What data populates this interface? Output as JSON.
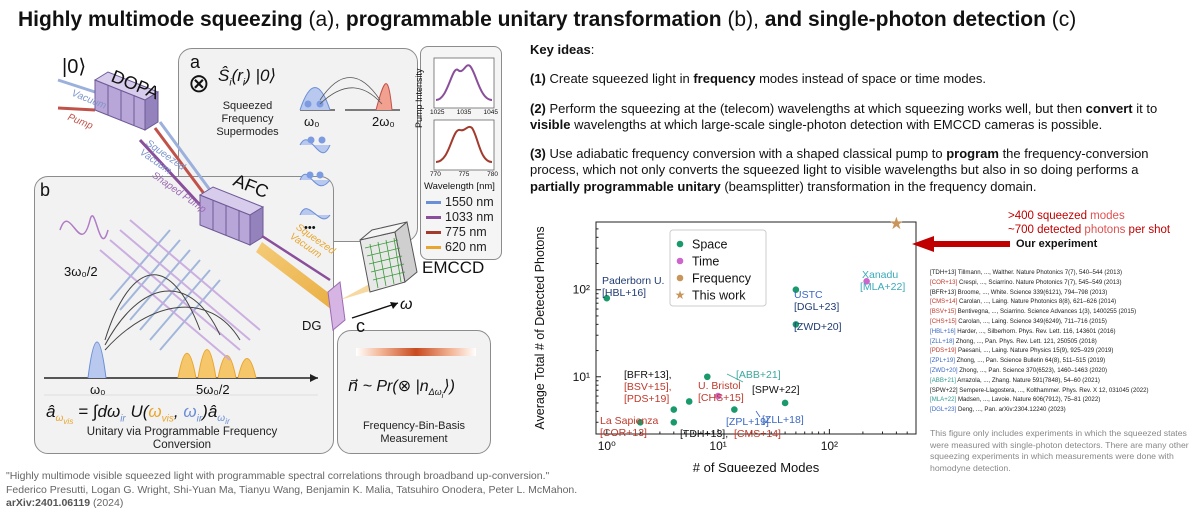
{
  "title": {
    "part1": "Highly multimode squeezing",
    "part1_tag": " (a), ",
    "part2": "programmable unitary transformation",
    "part2_tag": " (b), ",
    "part3": "and single-photon detection",
    "part3_tag": " (c)"
  },
  "figure": {
    "label_a": "a",
    "label_b": "b",
    "label_c": "c",
    "ket0": "|0⟩",
    "vacuum": "Vacuum",
    "pump": "Pump",
    "dopa": "DOPA",
    "squeezed_vacuum": "Squeezed Vacuum",
    "shaped_pump": "Shaped Pump",
    "afc": "AFC",
    "squeezed_vacuum_2": "Squeezed Vacuum",
    "emccd": "EMCCD",
    "dg": "DG",
    "omega": "ω",
    "omega0": "ω₀",
    "two_omega0": "2ω₀",
    "three_omega0_half": "3ω₀/2",
    "five_omega0_half": "5ω₀/2",
    "dots": "•••",
    "panel_a_caption": "Squeezed Frequency Supermodes",
    "panel_b_caption": "Unitary via Programmable Frequency Conversion",
    "panel_c_caption": "Frequency-Bin-Basis Measurement",
    "pump_intensity": "Pump Intensity",
    "wavelength_nm": "Wavelength [nm]",
    "inset_ticks_top": [
      "1025",
      "1035",
      "1045"
    ],
    "inset_ticks_bottom": [
      "770",
      "775",
      "780"
    ],
    "legend": [
      {
        "label": "1550 nm",
        "color": "#6b8fd6"
      },
      {
        "label": "1033 nm",
        "color": "#8a4f9a"
      },
      {
        "label": "775 nm",
        "color": "#a33a2e"
      },
      {
        "label": "620 nm",
        "color": "#e8a62e"
      }
    ]
  },
  "key_ideas": {
    "heading": "Key ideas",
    "i1_num": "(1)",
    "i1_a": " Create squeezed light in ",
    "i1_b": "frequency",
    "i1_c": " modes instead of space or time modes.",
    "i2_num": "(2)",
    "i2_a": " Perform the squeezing at the (telecom) wavelengths at which squeezing works well, but then ",
    "i2_b": "convert",
    "i2_c": " it to ",
    "i2_d": "visible",
    "i2_e": " wavelengths at which large-scale single-photon detection with EMCCD cameras is possible.",
    "i3_num": "(3)",
    "i3_a": " Use adiabatic frequency conversion with a shaped classical pump to ",
    "i3_b": "program",
    "i3_c": " the frequency-conversion process, which not only converts the squeezed light to visible wavelengths but also in so doing performs a ",
    "i3_d": "partially programmable unitary",
    "i3_e": " (beamsplitter) transformation in the frequency domain."
  },
  "chart_data": {
    "type": "scatter",
    "xlabel": "# of Squeezed Modes",
    "ylabel": "Average Total # of Detected Photons",
    "x_scale": "log",
    "y_scale": "log",
    "xlim": [
      0.8,
      600
    ],
    "ylim": [
      2.2,
      600
    ],
    "x_ticks": [
      {
        "v": 1,
        "label": "10⁰"
      },
      {
        "v": 10,
        "label": "10¹"
      },
      {
        "v": 100,
        "label": "10²"
      }
    ],
    "y_ticks": [
      {
        "v": 10,
        "label": "10¹"
      },
      {
        "v": 100,
        "label": "10²"
      }
    ],
    "legend": [
      {
        "label": "Space",
        "color": "#1a9a6c",
        "marker": "dot"
      },
      {
        "label": "Time",
        "color": "#cc66cc",
        "marker": "dot"
      },
      {
        "label": "Frequency",
        "color": "#c8955a",
        "marker": "dot"
      },
      {
        "label": "This work",
        "color": "#c8955a",
        "marker": "star"
      }
    ],
    "legend_position": "top-left",
    "series": [
      {
        "name": "Space",
        "color": "#1a9a6c",
        "points": [
          {
            "x": 1,
            "y": 80
          },
          {
            "x": 2,
            "y": 3
          },
          {
            "x": 4,
            "y": 3
          },
          {
            "x": 4,
            "y": 4.2
          },
          {
            "x": 5.5,
            "y": 5.2
          },
          {
            "x": 8,
            "y": 10
          },
          {
            "x": 14,
            "y": 4.2
          },
          {
            "x": 40,
            "y": 5
          },
          {
            "x": 50,
            "y": 100
          },
          {
            "x": 50,
            "y": 40
          }
        ]
      },
      {
        "name": "Time",
        "color": "#cc66cc",
        "points": [
          {
            "x": 10,
            "y": 6
          },
          {
            "x": 216,
            "y": 125
          }
        ]
      },
      {
        "name": "This work",
        "color": "#c8955a",
        "marker": "star",
        "points": [
          {
            "x": 400,
            "y": 700
          }
        ]
      }
    ],
    "annotations": [
      {
        "text": "Paderborn U.",
        "color": "#1f3b73"
      },
      {
        "text": "[HBL+16]",
        "color": "#1f3b73"
      },
      {
        "text": "USTC",
        "color": "#3b68c4"
      },
      {
        "text": "[DGL+23]",
        "color": "#1f3b73"
      },
      {
        "text": "Xanadu",
        "color": "#3aaabb"
      },
      {
        "text": "[MLA+22]",
        "color": "#3aaabb"
      },
      {
        "text": "[ZWD+20]",
        "color": "#1f3b73"
      },
      {
        "text": "[BFR+13],",
        "color": "#111"
      },
      {
        "text": "[BSV+15],",
        "color": "#c0392b"
      },
      {
        "text": "[PDS+19]",
        "color": "#c0392b"
      },
      {
        "text": "U. Bristol",
        "color": "#c0392b"
      },
      {
        "text": "[CHS+15]",
        "color": "#c0392b"
      },
      {
        "text": "[ABB+21]",
        "color": "#3aaa9b"
      },
      {
        "text": "[SPW+22]",
        "color": "#111"
      },
      {
        "text": "[ZPL+19]",
        "color": "#3b68c4"
      },
      {
        "text": "[ZLL+18]",
        "color": "#3b68c4"
      },
      {
        "text": "La Sapienza",
        "color": "#c0392b"
      },
      {
        "text": "[COR+13]",
        "color": "#c0392b"
      },
      {
        "text": "[TDH+13],",
        "color": "#111"
      },
      {
        "text": "[CMS+14]",
        "color": "#c0392b"
      }
    ],
    "callout": {
      "line1_a": ">400 squeezed ",
      "line1_b": "modes",
      "line2_a": "~700 detected ",
      "line2_b": "photons",
      "line2_c": " per shot",
      "our": "Our experiment"
    }
  },
  "references": [
    "[TDH+13] Tillmann, ..., Walther. Nature Photonics 7(7), 540–544 (2013)",
    "[COR+13] Crespi, ..., Sciarrino. Nature Photonics 7(7), 545–549 (2013)",
    "[BFR+13] Broome, ..., White. Science 339(6121), 794–798 (2013)",
    "[CMS+14] Carolan, ..., Laing. Nature Photonics 8(8), 621–626 (2014)",
    "[BSV+15] Bentivegna, ..., Sciarrino. Science Advances 1(3), 1400255 (2015)",
    "[CHS+15] Carolan, ..., Laing. Science 349(6249), 711–716 (2015)",
    "[HBL+16] Harder, ..., Silberhorn. Phys. Rev. Lett. 116, 143601 (2016)",
    "[ZLL+18] Zhong, ..., Pan. Phys. Rev. Lett. 121, 250505 (2018)",
    "[PDS+19] Paesani, ..., Laing. Nature Physics 15(9), 925–929 (2019)",
    "[ZPL+19] Zhong, ..., Pan. Science Bulletin 64(8), 511–515 (2019)",
    "[ZWD+20] Zhong, ..., Pan. Science 370(6523), 1460–1463 (2020)",
    "[ABB+21] Arrazola, ..., Zhang. Nature 591(7848), 54–60 (2021)",
    "[SPW+22] Sempere-Llagostera, ..., Kolthammer. Phys. Rev. X 12, 031045 (2022)",
    "[MLA+22] Madsen, ..., Lavoie. Nature 606(7912), 75–81 (2022)",
    "[DGL+23] Deng, ..., Pan. arXiv:2304.12240 (2023)"
  ],
  "note": "This figure only includes experiments in which the squeezed states were measured with single-photon detectors. There are many other squeezing experiments in which measurements were done with homodyne detection.",
  "citation": {
    "title": "\"Highly multimode visible squeezed light with programmable spectral correlations through broadband up-conversion.\"",
    "authors": "Federico Presutti, Logan G. Wright, Shi-Yuan Ma, Tianyu Wang, Benjamin K. Malia, Tatsuhiro Onodera, Peter L. McMahon.",
    "arxiv": "arXiv:2401.06119",
    "year": " (2024)"
  },
  "colors": {
    "accent_red": "#c00000",
    "space": "#1a9a6c",
    "time": "#cc66cc",
    "frequency": "#c8955a"
  }
}
